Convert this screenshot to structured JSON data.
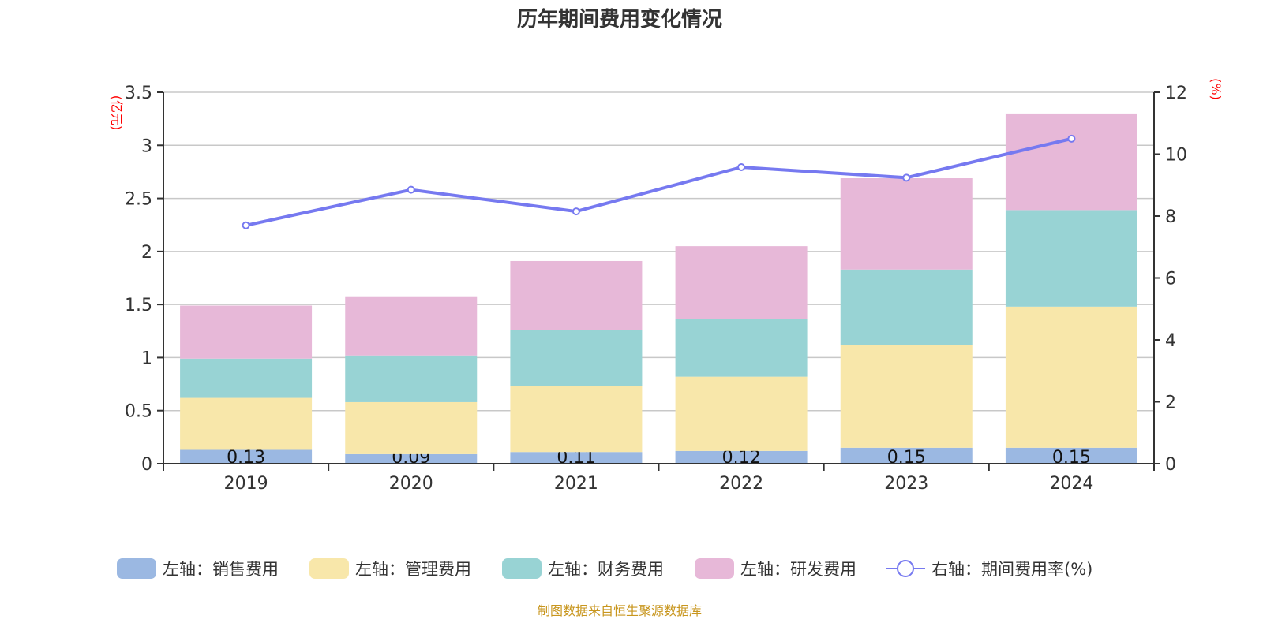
{
  "chart_data": {
    "type": "bar",
    "title": "历年期间费用变化情况",
    "categories": [
      "2019",
      "2020",
      "2021",
      "2022",
      "2023",
      "2024"
    ],
    "left_axis": {
      "label": "(亿元)",
      "range": [
        0,
        3.5
      ],
      "ticks": [
        "0",
        "0.5",
        "1",
        "1.5",
        "2",
        "2.5",
        "3",
        "3.5"
      ]
    },
    "right_axis": {
      "label": "(%)",
      "range": [
        0,
        12
      ],
      "ticks": [
        "0",
        "2",
        "4",
        "6",
        "8",
        "10",
        "12"
      ]
    },
    "grid": true,
    "legend_position": "bottom",
    "stacked": true,
    "series": [
      {
        "name": "左轴：销售费用",
        "type": "bar",
        "color": "#9bb8e2",
        "values": [
          0.13,
          0.09,
          0.11,
          0.12,
          0.15,
          0.15
        ],
        "labels": [
          "0.13",
          "0.09",
          "0.11",
          "0.12",
          "0.15",
          "0.15"
        ]
      },
      {
        "name": "左轴：管理费用",
        "type": "bar",
        "color": "#f8e7aa",
        "values": [
          0.49,
          0.49,
          0.62,
          0.7,
          0.97,
          1.33
        ]
      },
      {
        "name": "左轴：财务费用",
        "type": "bar",
        "color": "#98d3d4",
        "values": [
          0.37,
          0.44,
          0.53,
          0.54,
          0.71,
          0.91
        ]
      },
      {
        "name": "左轴：研发费用",
        "type": "bar",
        "color": "#e7b8d8",
        "values": [
          0.5,
          0.55,
          0.65,
          0.69,
          0.86,
          0.91
        ]
      },
      {
        "name": "右轴：期间费用率(%)",
        "type": "line",
        "axis": "right",
        "color": "#7679f0",
        "values": [
          7.7,
          8.85,
          8.15,
          9.58,
          9.24,
          10.5
        ]
      }
    ]
  },
  "source": "制图数据来自恒生聚源数据库",
  "colors": {
    "axis_label": "#ff0000",
    "source": "#c8961e",
    "text": "#333333"
  }
}
